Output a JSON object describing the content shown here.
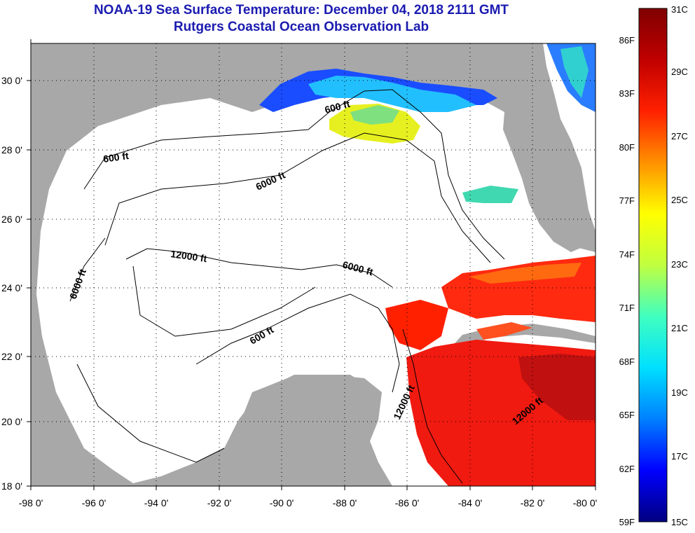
{
  "title": {
    "line1": "NOAA-19 Sea Surface Temperature:  December 04, 2018 2111 GMT",
    "line2": "Rutgers Coastal Ocean Observation Lab"
  },
  "map": {
    "lat_ticks": [
      "30 0'",
      "28 0'",
      "26 0'",
      "24 0'",
      "22 0'",
      "20 0'",
      "18 0'"
    ],
    "lon_ticks": [
      "-98 0'",
      "-96 0'",
      "-94 0'",
      "-92 0'",
      "-90 0'",
      "-88 0'",
      "-86 0'",
      "-84 0'",
      "-82 0'",
      "-80 0'"
    ],
    "contour_labels": [
      "600 ft",
      "600 ft",
      "6000 ft",
      "12000 ft",
      "6000 ft",
      "6000 ft",
      "600 ft",
      "12000 ft",
      "12000 ft"
    ],
    "land_color": "#a8a8a8",
    "no_data_color": "#ffffff"
  },
  "colorbar": {
    "fahrenheit": [
      "86F",
      "83F",
      "80F",
      "77F",
      "74F",
      "71F",
      "68F",
      "65F",
      "62F",
      "59F"
    ],
    "celsius": [
      "31C",
      "29C",
      "27C",
      "25C",
      "23C",
      "21C",
      "19C",
      "17C",
      "15C"
    ],
    "gradient": [
      "#000080",
      "#0000ff",
      "#0080ff",
      "#00e0ff",
      "#40ffc0",
      "#c0ff40",
      "#ffff00",
      "#ff9000",
      "#ff2000",
      "#c00000",
      "#800000"
    ]
  }
}
